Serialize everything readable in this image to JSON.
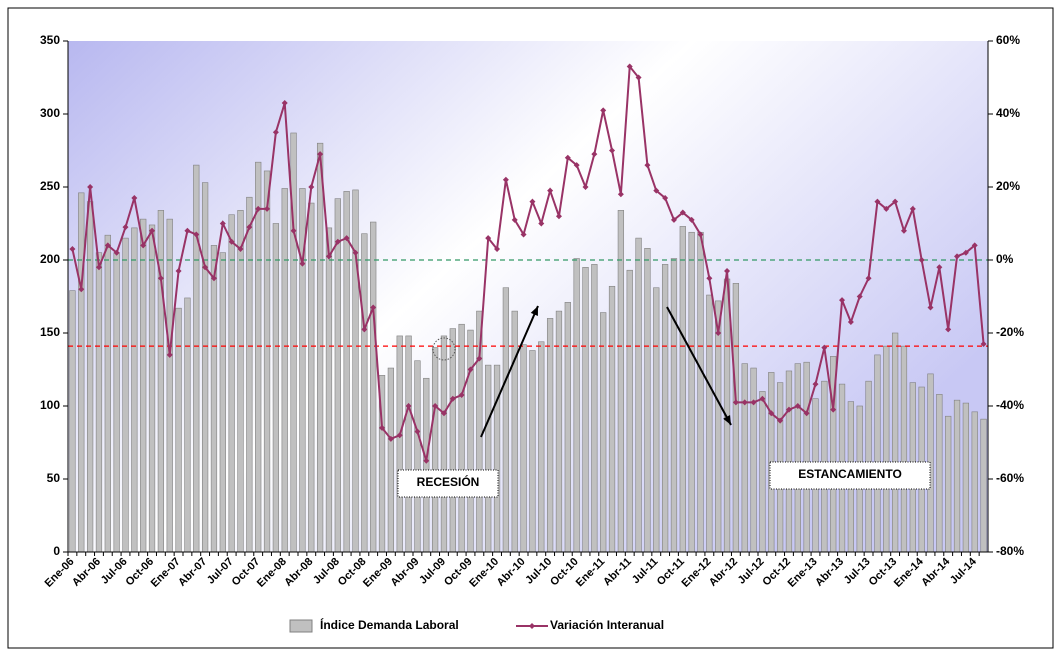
{
  "chart_data": {
    "type": "bar-line",
    "categories": [
      "Ene-06",
      null,
      null,
      "Abr-06",
      null,
      null,
      "Jul-06",
      null,
      null,
      "Oct-06",
      null,
      null,
      "Ene-07",
      null,
      null,
      "Abr-07",
      null,
      null,
      "Jul-07",
      null,
      null,
      "Oct-07",
      null,
      null,
      "Ene-08",
      null,
      null,
      "Abr-08",
      null,
      null,
      "Jul-08",
      null,
      null,
      "Oct-08",
      null,
      null,
      "Ene-09",
      null,
      null,
      "Abr-09",
      null,
      null,
      "Jul-09",
      null,
      null,
      "Oct-09",
      null,
      null,
      "Ene-10",
      null,
      null,
      "Abr-10",
      null,
      null,
      "Jul-10",
      null,
      null,
      "Oct-10",
      null,
      null,
      "Ene-11",
      null,
      null,
      "Abr-11",
      null,
      null,
      "Jul-11",
      null,
      null,
      "Oct-11",
      null,
      null,
      "Ene-12",
      null,
      null,
      "Abr-12",
      null,
      null,
      "Jul-12",
      null,
      null,
      "Oct-12",
      null,
      null,
      "Ene-13",
      null,
      null,
      "Abr-13",
      null,
      null,
      "Jul-13",
      null,
      null,
      "Oct-13",
      null,
      null,
      "Ene-14",
      null,
      null,
      "Abr-14",
      null,
      null,
      "Jul-14",
      null
    ],
    "series": [
      {
        "name": "Índice Demanda Laboral",
        "type": "bar",
        "axis": "y",
        "color": "#c0c0c0",
        "values": [
          179,
          246,
          240,
          205,
          217,
          205,
          215,
          222,
          228,
          224,
          234,
          228,
          167,
          174,
          265,
          253,
          210,
          205,
          231,
          234,
          243,
          267,
          261,
          225,
          249,
          287,
          249,
          239,
          280,
          222,
          242,
          247,
          248,
          218,
          226,
          121,
          126,
          148,
          148,
          131,
          119,
          140,
          148,
          153,
          156,
          152,
          165,
          128,
          128,
          181,
          165,
          142,
          138,
          144,
          160,
          165,
          171,
          201,
          195,
          197,
          164,
          182,
          234,
          193,
          215,
          208,
          181,
          197,
          201,
          223,
          219,
          219,
          176,
          172,
          187,
          184,
          129,
          126,
          110,
          123,
          116,
          124,
          129,
          130,
          105,
          117,
          134,
          115,
          103,
          100,
          117,
          135,
          141,
          150,
          141,
          116,
          113,
          122,
          108,
          93,
          104,
          102,
          96,
          91
        ]
      },
      {
        "name": "Variación Interanual",
        "type": "line",
        "axis": "y2",
        "color": "#993366",
        "values": [
          3,
          -8,
          20,
          -2,
          4,
          2,
          9,
          17,
          4,
          8,
          -5,
          -26,
          -3,
          8,
          7,
          -2,
          -5,
          10,
          5,
          3,
          9,
          14,
          14,
          35,
          43,
          8,
          -1,
          20,
          29,
          1,
          5,
          6,
          2,
          -19,
          -13,
          -46,
          -49,
          -48,
          -40,
          -47,
          -55,
          -40,
          -42,
          -38,
          -37,
          -30,
          -27,
          6,
          3,
          22,
          11,
          7,
          16,
          10,
          19,
          12,
          28,
          26,
          20,
          29,
          41,
          30,
          18,
          53,
          50,
          26,
          19,
          17,
          11,
          13,
          11,
          7,
          -5,
          -20,
          -3,
          -39,
          -39,
          -39,
          -38,
          -42,
          -44,
          -41,
          -40,
          -42,
          -34,
          -24,
          -41,
          -11,
          -17,
          -10,
          -5,
          16,
          14,
          16,
          8,
          14,
          0,
          -13,
          -2,
          -19,
          1,
          2,
          4,
          -23
        ]
      }
    ],
    "ylim": [
      0,
      350
    ],
    "yticks": [
      0,
      50,
      100,
      150,
      200,
      250,
      300,
      350
    ],
    "y2lim": [
      -80,
      60
    ],
    "y2ticks": [
      {
        "value": -80,
        "label": "-80%"
      },
      {
        "value": -60,
        "label": "-60%"
      },
      {
        "value": -40,
        "label": "-40%"
      },
      {
        "value": -20,
        "label": "-20%"
      },
      {
        "value": 0,
        "label": "0%"
      },
      {
        "value": 20,
        "label": "20%"
      },
      {
        "value": 40,
        "label": "40%"
      },
      {
        "value": 60,
        "label": "60%"
      }
    ],
    "reference_lines": [
      {
        "axis": "y2",
        "value": 0,
        "color": "#339966"
      },
      {
        "axis": "y",
        "value": 141,
        "color": "#ff0000"
      }
    ],
    "annotations": [
      "RECESIÓN",
      "ESTANCAMIENTO"
    ]
  }
}
